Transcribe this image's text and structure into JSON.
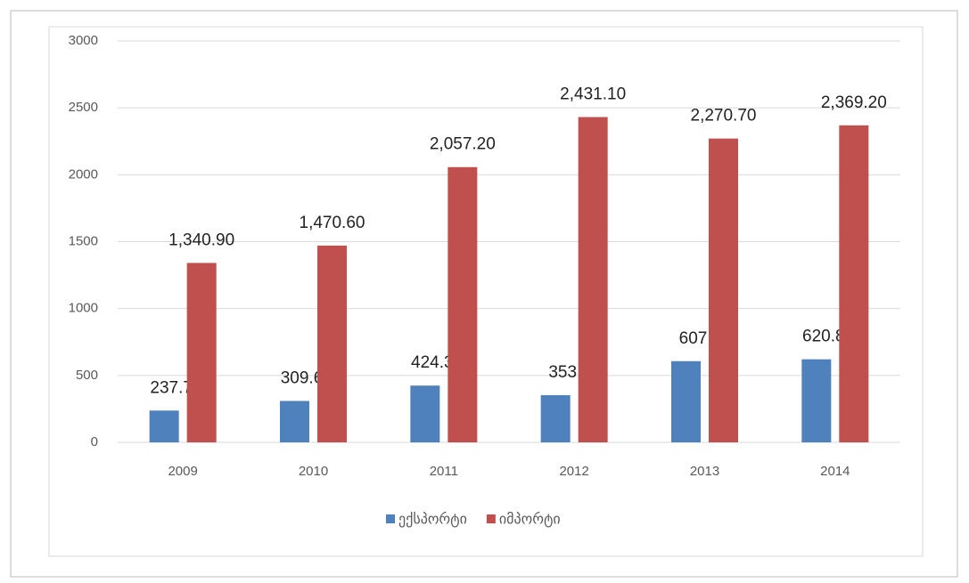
{
  "chart_data": {
    "type": "bar",
    "categories": [
      "2009",
      "2010",
      "2011",
      "2012",
      "2013",
      "2014"
    ],
    "series": [
      {
        "name": "ექსპორტი",
        "color": "#4f81bd",
        "values": [
          237.7,
          309.6,
          424.3,
          353,
          607,
          620.8
        ]
      },
      {
        "name": "იმპორტი",
        "color": "#c0504d",
        "values": [
          1340.9,
          1470.6,
          2057.2,
          2431.1,
          2270.7,
          2369.2
        ],
        "value_labels": [
          "1,340.90",
          "1,470.60",
          "2,057.20",
          "2,431.10",
          "2,270.70",
          "2,369.20"
        ]
      }
    ],
    "ylim": [
      0,
      3000
    ],
    "yticks": [
      0,
      500,
      1000,
      1500,
      2000,
      2500,
      3000
    ],
    "grid": true,
    "legend": "bottom"
  }
}
